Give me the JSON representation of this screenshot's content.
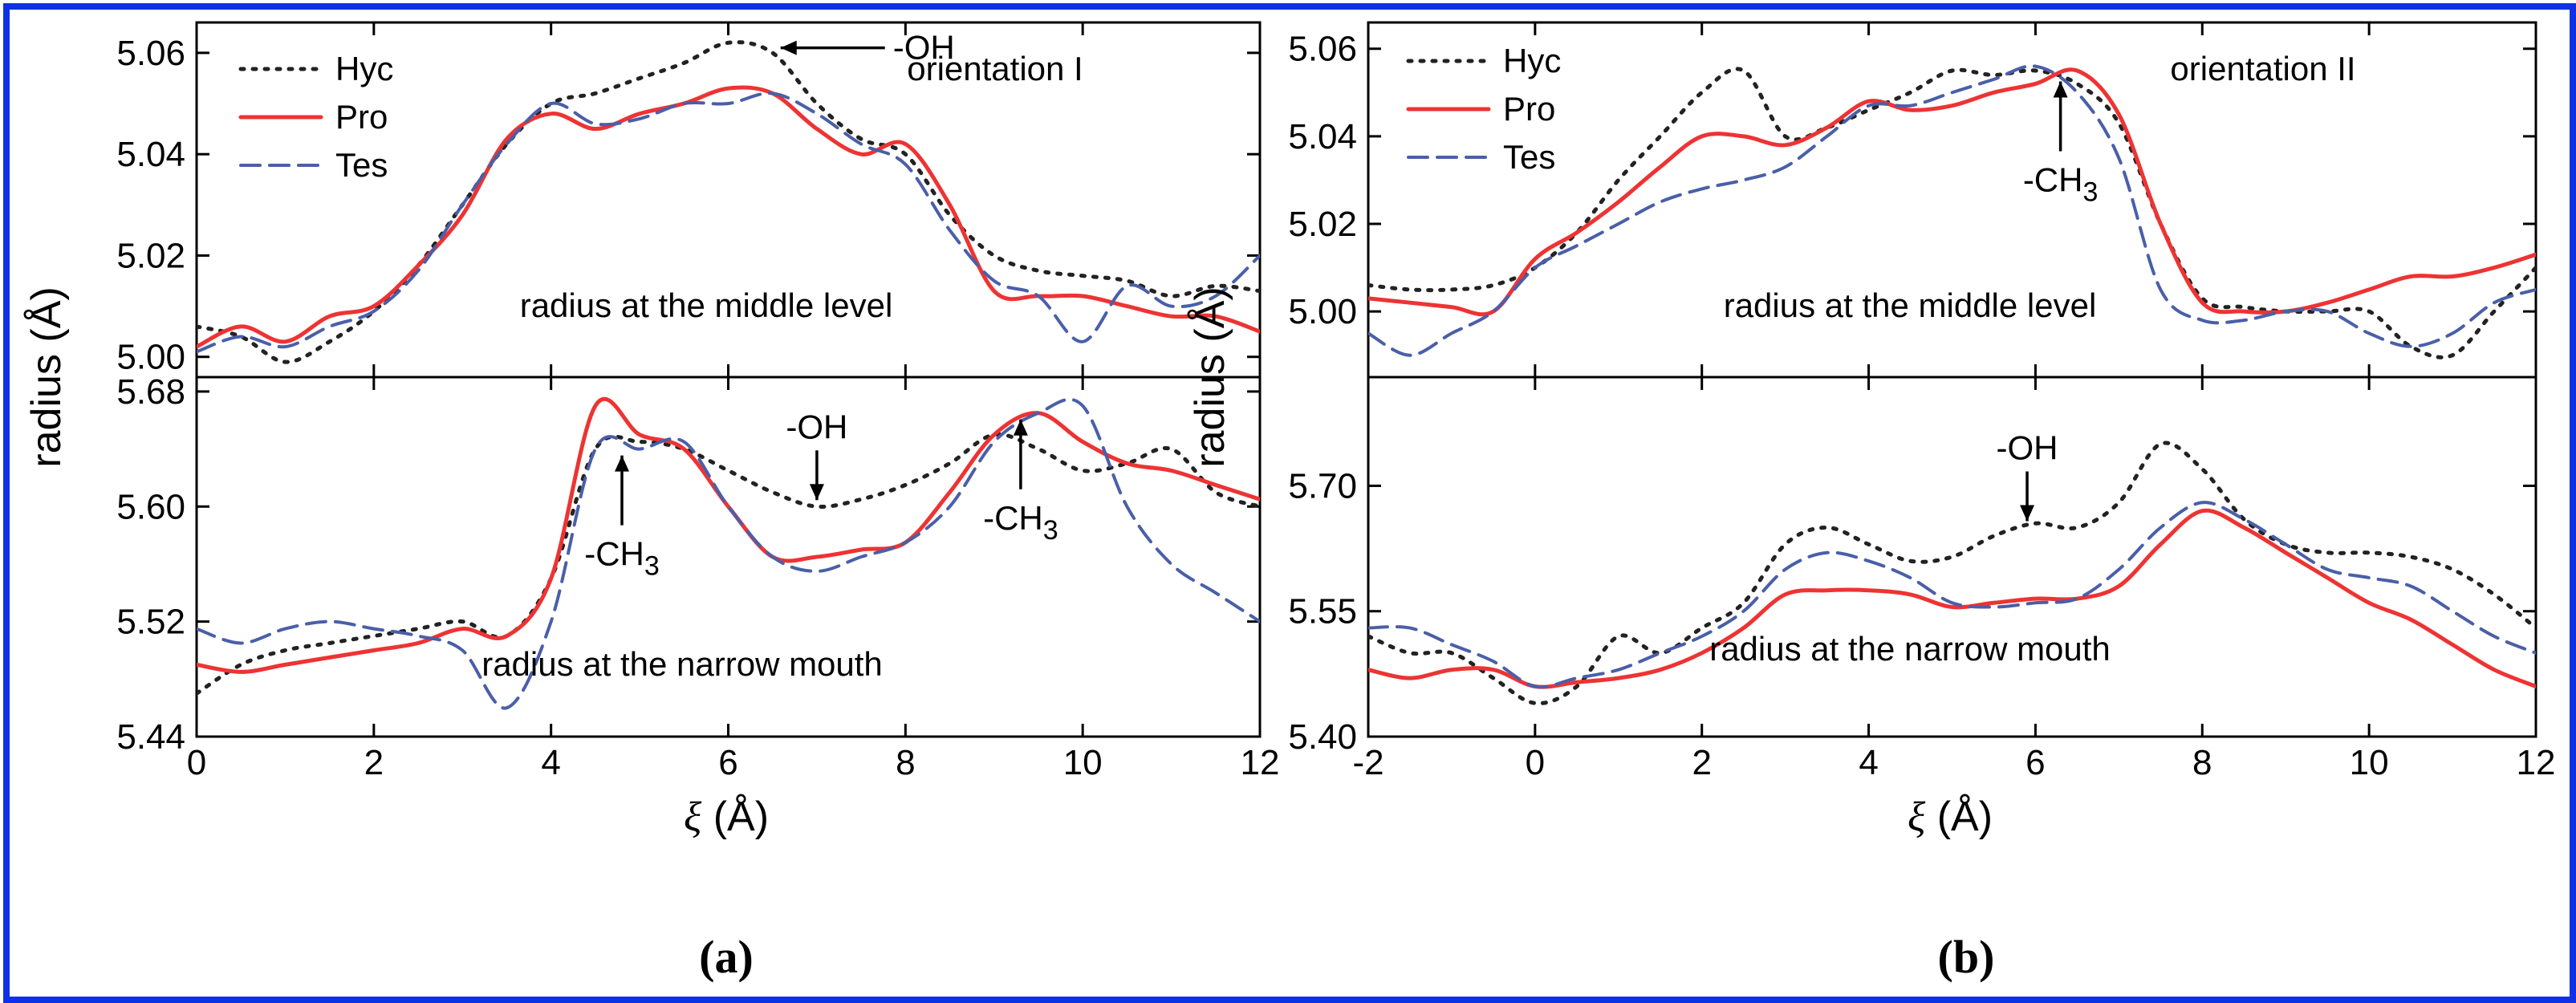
{
  "colors": {
    "frame": "#1030e8",
    "Hyc": "#222222",
    "Pro": "#ee3333",
    "Tes": "#4a5fa8"
  },
  "chart_data": [
    {
      "type": "line",
      "label": "(a)",
      "orientation_label": "orientation I",
      "xlabel": "ξ (Å)",
      "ylabel": "radius (Å)",
      "xlim": [
        0,
        12
      ],
      "xticks": [
        "0",
        "2",
        "4",
        "6",
        "8",
        "10",
        "12"
      ],
      "legend": [
        {
          "name": "Hyc",
          "style": "dotted"
        },
        {
          "name": "Pro",
          "style": "solid"
        },
        {
          "name": "Tes",
          "style": "dashed"
        }
      ],
      "panels": [
        {
          "id": "a-top",
          "caption": "radius at the middle level",
          "ylim": [
            4.996,
            5.066
          ],
          "yticks": [
            "5.00",
            "5.02",
            "5.04",
            "5.06"
          ],
          "series": [
            {
              "name": "Hyc",
              "x": [
                0,
                0.5,
                1,
                1.5,
                2,
                2.5,
                3,
                3.5,
                4,
                4.5,
                5,
                5.5,
                6,
                6.5,
                7,
                7.5,
                8,
                8.5,
                9,
                9.5,
                10,
                10.5,
                11,
                11.5,
                12
              ],
              "y": [
                5.006,
                5.004,
                4.999,
                5.003,
                5.009,
                5.018,
                5.03,
                5.042,
                5.05,
                5.052,
                5.055,
                5.058,
                5.062,
                5.06,
                5.05,
                5.043,
                5.04,
                5.028,
                5.02,
                5.017,
                5.016,
                5.015,
                5.012,
                5.014,
                5.013
              ]
            },
            {
              "name": "Pro",
              "x": [
                0,
                0.5,
                1,
                1.5,
                2,
                2.5,
                3,
                3.5,
                4,
                4.5,
                5,
                5.5,
                6,
                6.5,
                7,
                7.5,
                8,
                8.5,
                9,
                9.5,
                10,
                10.5,
                11,
                11.5,
                12
              ],
              "y": [
                5.002,
                5.006,
                5.003,
                5.008,
                5.01,
                5.018,
                5.028,
                5.043,
                5.048,
                5.045,
                5.048,
                5.05,
                5.053,
                5.052,
                5.045,
                5.04,
                5.042,
                5.03,
                5.013,
                5.012,
                5.012,
                5.01,
                5.008,
                5.008,
                5.005
              ]
            },
            {
              "name": "Tes",
              "x": [
                0,
                0.5,
                1,
                1.5,
                2,
                2.5,
                3,
                3.5,
                4,
                4.5,
                5,
                5.5,
                6,
                6.5,
                7,
                7.5,
                8,
                8.5,
                9,
                9.5,
                10,
                10.5,
                11,
                11.5,
                12
              ],
              "y": [
                5.001,
                5.004,
                5.002,
                5.006,
                5.009,
                5.017,
                5.03,
                5.042,
                5.05,
                5.046,
                5.047,
                5.05,
                5.05,
                5.052,
                5.048,
                5.042,
                5.038,
                5.025,
                5.015,
                5.012,
                5.003,
                5.014,
                5.01,
                5.012,
                5.02
              ]
            }
          ],
          "annotations": [
            {
              "text": "-OH",
              "x": 6.5,
              "y": 5.061,
              "arrow": "left"
            }
          ]
        },
        {
          "id": "a-bottom",
          "caption": "radius at the narrow mouth",
          "ylim": [
            5.44,
            5.69
          ],
          "yticks": [
            "5.44",
            "5.52",
            "5.60",
            "5.68"
          ],
          "series": [
            {
              "name": "Hyc",
              "x": [
                0,
                0.5,
                1,
                1.5,
                2,
                2.5,
                3,
                3.5,
                4,
                4.5,
                5,
                5.5,
                6,
                6.5,
                7,
                7.5,
                8,
                8.5,
                9,
                9.5,
                10,
                10.5,
                11,
                11.5,
                12
              ],
              "y": [
                5.47,
                5.49,
                5.5,
                5.505,
                5.51,
                5.515,
                5.52,
                5.51,
                5.55,
                5.64,
                5.645,
                5.64,
                5.625,
                5.61,
                5.6,
                5.605,
                5.615,
                5.63,
                5.65,
                5.64,
                5.625,
                5.63,
                5.64,
                5.61,
                5.6
              ]
            },
            {
              "name": "Pro",
              "x": [
                0,
                0.5,
                1,
                1.5,
                2,
                2.5,
                3,
                3.5,
                4,
                4.5,
                5,
                5.5,
                6,
                6.5,
                7,
                7.5,
                8,
                8.5,
                9,
                9.5,
                10,
                10.5,
                11,
                11.5,
                12
              ],
              "y": [
                5.49,
                5.485,
                5.49,
                5.495,
                5.5,
                5.505,
                5.515,
                5.51,
                5.55,
                5.67,
                5.65,
                5.64,
                5.6,
                5.565,
                5.565,
                5.57,
                5.575,
                5.61,
                5.65,
                5.665,
                5.645,
                5.63,
                5.625,
                5.615,
                5.605
              ]
            },
            {
              "name": "Tes",
              "x": [
                0,
                0.5,
                1,
                1.5,
                2,
                2.5,
                3,
                3.5,
                4,
                4.5,
                5,
                5.5,
                6,
                6.5,
                7,
                7.5,
                8,
                8.5,
                9,
                9.5,
                10,
                10.5,
                11,
                11.5,
                12
              ],
              "y": [
                5.515,
                5.505,
                5.515,
                5.52,
                5.515,
                5.51,
                5.5,
                5.46,
                5.52,
                5.64,
                5.64,
                5.645,
                5.6,
                5.565,
                5.555,
                5.565,
                5.575,
                5.6,
                5.645,
                5.665,
                5.67,
                5.6,
                5.56,
                5.54,
                5.52
              ]
            }
          ],
          "annotations": [
            {
              "text": "-CH3",
              "x": 4.8,
              "y": 5.64,
              "arrow": "up"
            },
            {
              "text": "-OH",
              "x": 7.0,
              "y": 5.6,
              "arrow": "down"
            },
            {
              "text": "-CH3",
              "x": 9.3,
              "y": 5.665,
              "arrow": "up"
            }
          ]
        }
      ]
    },
    {
      "type": "line",
      "label": "(b)",
      "orientation_label": "orientation II",
      "xlabel": "ξ (Å)",
      "ylabel": "radius (Å)",
      "xlim": [
        -2,
        12
      ],
      "xticks": [
        "-2",
        "0",
        "2",
        "4",
        "6",
        "8",
        "10",
        "12"
      ],
      "legend": [
        {
          "name": "Hyc",
          "style": "dotted"
        },
        {
          "name": "Pro",
          "style": "solid"
        },
        {
          "name": "Tes",
          "style": "dashed"
        }
      ],
      "panels": [
        {
          "id": "b-top",
          "caption": "radius at the middle level",
          "ylim": [
            4.985,
            5.066
          ],
          "yticks": [
            "5.00",
            "5.02",
            "5.04",
            "5.06"
          ],
          "series": [
            {
              "name": "Hyc",
              "x": [
                -2,
                -1.5,
                -1,
                -0.5,
                0,
                0.5,
                1,
                1.5,
                2,
                2.5,
                3,
                3.5,
                4,
                4.5,
                5,
                5.5,
                6,
                6.5,
                7,
                7.5,
                8,
                8.5,
                9,
                9.5,
                10,
                10.5,
                11,
                11.5,
                12
              ],
              "y": [
                5.006,
                5.005,
                5.005,
                5.006,
                5.01,
                5.018,
                5.03,
                5.04,
                5.05,
                5.055,
                5.04,
                5.042,
                5.046,
                5.05,
                5.055,
                5.054,
                5.055,
                5.052,
                5.043,
                5.02,
                5.003,
                5.001,
                5.0,
                5.0,
                5.0,
                4.992,
                4.99,
                5.0,
                5.01
              ]
            },
            {
              "name": "Pro",
              "x": [
                -2,
                -1.5,
                -1,
                -0.5,
                0,
                0.5,
                1,
                1.5,
                2,
                2.5,
                3,
                3.5,
                4,
                4.5,
                5,
                5.5,
                6,
                6.5,
                7,
                7.5,
                8,
                8.5,
                9,
                9.5,
                10,
                10.5,
                11,
                11.5,
                12
              ],
              "y": [
                5.003,
                5.002,
                5.001,
                5.0,
                5.012,
                5.018,
                5.025,
                5.033,
                5.04,
                5.04,
                5.038,
                5.042,
                5.048,
                5.046,
                5.047,
                5.05,
                5.052,
                5.055,
                5.045,
                5.02,
                5.002,
                5.0,
                5.0,
                5.002,
                5.005,
                5.008,
                5.008,
                5.01,
                5.013
              ]
            },
            {
              "name": "Tes",
              "x": [
                -2,
                -1.5,
                -1,
                -0.5,
                0,
                0.5,
                1,
                1.5,
                2,
                2.5,
                3,
                3.5,
                4,
                4.5,
                5,
                5.5,
                6,
                6.5,
                7,
                7.5,
                8,
                8.5,
                9,
                9.5,
                10,
                10.5,
                11,
                11.5,
                12
              ],
              "y": [
                4.995,
                4.99,
                4.995,
                5.0,
                5.01,
                5.015,
                5.02,
                5.025,
                5.028,
                5.03,
                5.033,
                5.04,
                5.047,
                5.047,
                5.05,
                5.053,
                5.056,
                5.05,
                5.035,
                5.005,
                4.998,
                4.998,
                5.0,
                5.0,
                4.995,
                4.992,
                4.995,
                5.002,
                5.005
              ]
            }
          ],
          "annotations": [
            {
              "text": "-CH3",
              "x": 6.3,
              "y": 5.054,
              "arrow": "up"
            }
          ]
        },
        {
          "id": "b-bottom",
          "caption": "radius at the narrow mouth",
          "ylim": [
            5.4,
            5.83
          ],
          "yticks": [
            "5.40",
            "5.55",
            "5.70"
          ],
          "series": [
            {
              "name": "Hyc",
              "x": [
                -2,
                -1.5,
                -1,
                -0.5,
                0,
                0.5,
                1,
                1.5,
                2,
                2.5,
                3,
                3.5,
                4,
                4.5,
                5,
                5.5,
                6,
                6.5,
                7,
                7.5,
                8,
                8.5,
                9,
                9.5,
                10,
                10.5,
                11,
                11.5,
                12
              ],
              "y": [
                5.52,
                5.5,
                5.5,
                5.47,
                5.44,
                5.46,
                5.52,
                5.5,
                5.53,
                5.56,
                5.63,
                5.65,
                5.63,
                5.61,
                5.615,
                5.64,
                5.655,
                5.65,
                5.68,
                5.75,
                5.72,
                5.66,
                5.63,
                5.62,
                5.62,
                5.615,
                5.6,
                5.57,
                5.53
              ]
            },
            {
              "name": "Pro",
              "x": [
                -2,
                -1.5,
                -1,
                -0.5,
                0,
                0.5,
                1,
                1.5,
                2,
                2.5,
                3,
                3.5,
                4,
                4.5,
                5,
                5.5,
                6,
                6.5,
                7,
                7.5,
                8,
                8.5,
                9,
                9.5,
                10,
                10.5,
                11,
                11.5,
                12
              ],
              "y": [
                5.48,
                5.47,
                5.48,
                5.48,
                5.46,
                5.465,
                5.47,
                5.48,
                5.5,
                5.53,
                5.57,
                5.575,
                5.575,
                5.57,
                5.555,
                5.56,
                5.565,
                5.565,
                5.58,
                5.63,
                5.67,
                5.65,
                5.62,
                5.59,
                5.56,
                5.54,
                5.51,
                5.48,
                5.46
              ]
            },
            {
              "name": "Tes",
              "x": [
                -2,
                -1.5,
                -1,
                -0.5,
                0,
                0.5,
                1,
                1.5,
                2,
                2.5,
                3,
                3.5,
                4,
                4.5,
                5,
                5.5,
                6,
                6.5,
                7,
                7.5,
                8,
                8.5,
                9,
                9.5,
                10,
                10.5,
                11,
                11.5,
                12
              ],
              "y": [
                5.53,
                5.53,
                5.51,
                5.49,
                5.46,
                5.47,
                5.48,
                5.5,
                5.52,
                5.55,
                5.6,
                5.62,
                5.61,
                5.59,
                5.56,
                5.555,
                5.56,
                5.565,
                5.6,
                5.65,
                5.68,
                5.66,
                5.63,
                5.6,
                5.59,
                5.58,
                5.55,
                5.52,
                5.5
              ]
            }
          ],
          "annotations": [
            {
              "text": "-OH",
              "x": 5.9,
              "y": 5.65,
              "arrow": "down"
            }
          ]
        }
      ]
    }
  ]
}
